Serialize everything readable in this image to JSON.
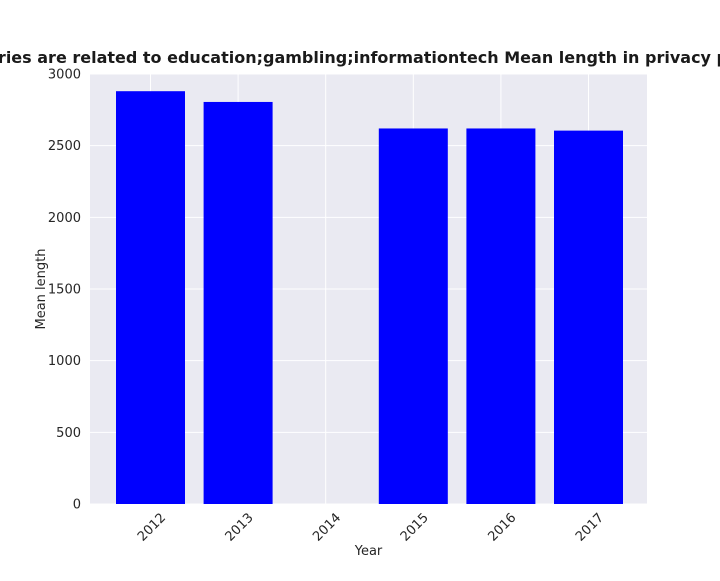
{
  "chart_data": {
    "type": "bar",
    "title": "categories are related to education;gambling;informationtech Mean length in privacy policies",
    "xlabel": "Year",
    "ylabel": "Mean length",
    "categories": [
      "2012",
      "2013",
      "2014",
      "2015",
      "2016",
      "2017"
    ],
    "values": [
      2880,
      2805,
      0,
      2620,
      2620,
      2605
    ],
    "ylim": [
      0,
      3000
    ],
    "yticks": [
      0,
      500,
      1000,
      1500,
      2000,
      2500,
      3000
    ],
    "bar_color": "#0000ff",
    "plot_background": "#eaeaf2",
    "grid": true,
    "legend": "none"
  }
}
